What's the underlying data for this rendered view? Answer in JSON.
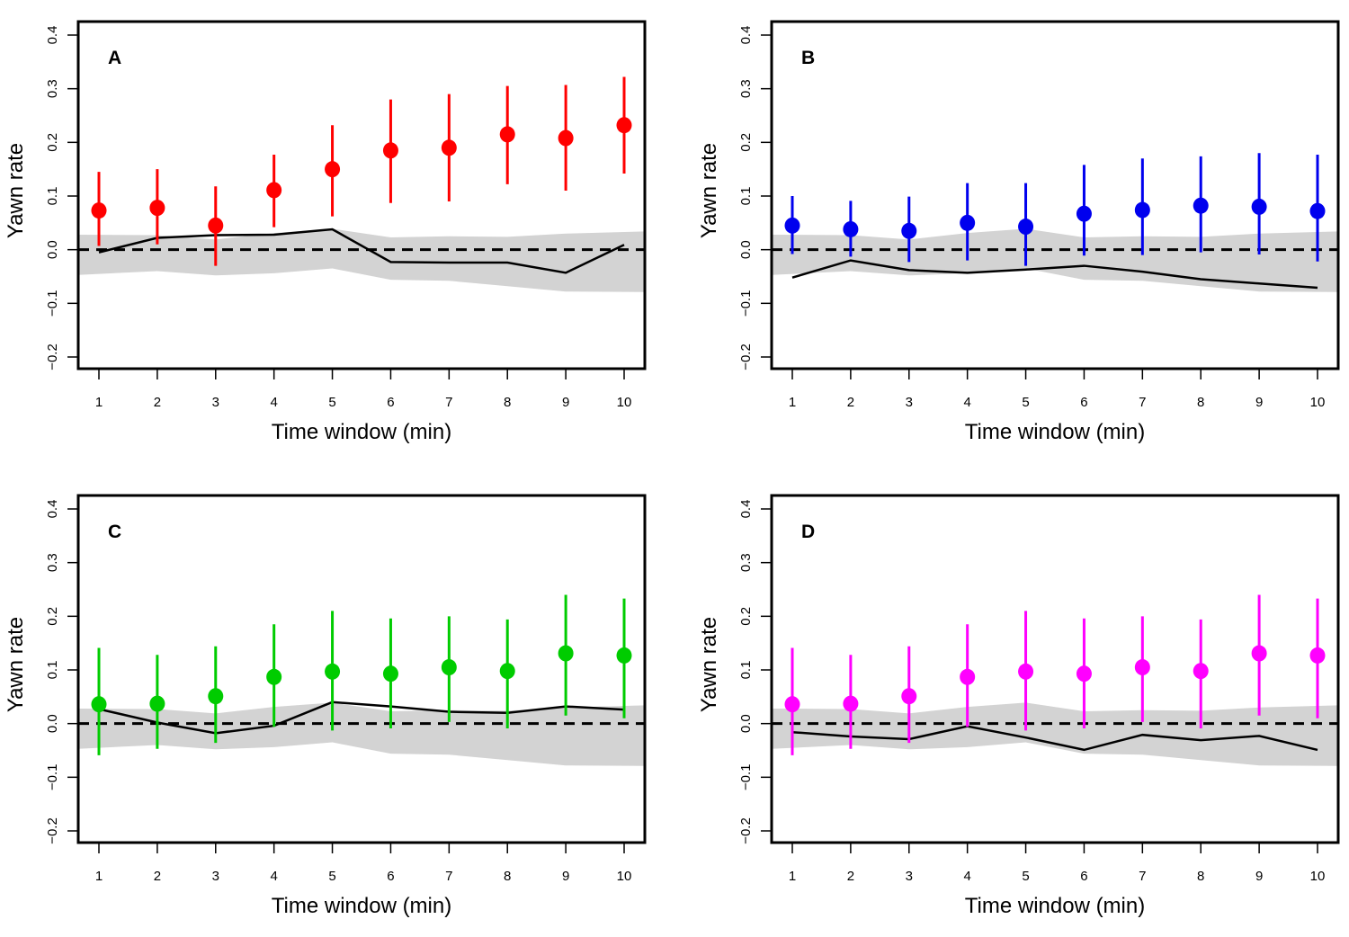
{
  "chart_data": [
    {
      "type": "scatter",
      "panel_label": "A",
      "color": "#ff0000",
      "xlabel": "Time window (min)",
      "ylabel": "Yawn rate",
      "x": [
        1,
        2,
        3,
        4,
        5,
        6,
        7,
        8,
        9,
        10
      ],
      "xticks": [
        "1",
        "2",
        "3",
        "4",
        "5",
        "6",
        "7",
        "8",
        "9",
        "10"
      ],
      "yticks": [
        "-0.2",
        "-0.1",
        "0.0",
        "0.1",
        "0.2",
        "0.3",
        "0.4"
      ],
      "ylim": [
        -0.22,
        0.42
      ],
      "points": [
        0.073,
        0.078,
        0.045,
        0.111,
        0.15,
        0.185,
        0.19,
        0.215,
        0.208,
        0.232
      ],
      "err_upper": [
        0.145,
        0.15,
        0.118,
        0.177,
        0.232,
        0.28,
        0.29,
        0.305,
        0.307,
        0.322
      ],
      "err_lower": [
        0.007,
        0.01,
        -0.03,
        0.042,
        0.062,
        0.087,
        0.09,
        0.122,
        0.11,
        0.142
      ],
      "null_line": [
        -0.005,
        0.022,
        0.027,
        0.028,
        0.038,
        -0.023,
        -0.024,
        -0.024,
        -0.043,
        0.009
      ],
      "band_upper": [
        0.028,
        0.027,
        0.019,
        0.031,
        0.039,
        0.023,
        0.025,
        0.024,
        0.03,
        0.034
      ],
      "band_lower": [
        -0.047,
        -0.04,
        -0.048,
        -0.044,
        -0.035,
        -0.056,
        -0.058,
        -0.068,
        -0.078,
        -0.079
      ],
      "reference_line": 0
    },
    {
      "type": "scatter",
      "panel_label": "B",
      "color": "#0000ee",
      "xlabel": "Time window (min)",
      "ylabel": "Yawn rate",
      "x": [
        1,
        2,
        3,
        4,
        5,
        6,
        7,
        8,
        9,
        10
      ],
      "xticks": [
        "1",
        "2",
        "3",
        "4",
        "5",
        "6",
        "7",
        "8",
        "9",
        "10"
      ],
      "yticks": [
        "-0.2",
        "-0.1",
        "0.0",
        "0.1",
        "0.2",
        "0.3",
        "0.4"
      ],
      "ylim": [
        -0.22,
        0.42
      ],
      "points": [
        0.045,
        0.038,
        0.035,
        0.05,
        0.043,
        0.067,
        0.074,
        0.082,
        0.08,
        0.072
      ],
      "err_upper": [
        0.1,
        0.091,
        0.099,
        0.124,
        0.124,
        0.158,
        0.17,
        0.174,
        0.18,
        0.177
      ],
      "err_lower": [
        -0.008,
        -0.013,
        -0.023,
        -0.02,
        -0.03,
        -0.011,
        -0.01,
        -0.005,
        -0.009,
        -0.022
      ],
      "null_line": [
        -0.052,
        -0.02,
        -0.038,
        -0.043,
        -0.037,
        -0.03,
        -0.041,
        -0.055,
        -0.063,
        -0.071
      ],
      "band_upper": [
        0.028,
        0.027,
        0.019,
        0.031,
        0.039,
        0.023,
        0.025,
        0.024,
        0.03,
        0.034
      ],
      "band_lower": [
        -0.047,
        -0.04,
        -0.048,
        -0.044,
        -0.035,
        -0.056,
        -0.058,
        -0.068,
        -0.078,
        -0.079
      ],
      "reference_line": 0
    },
    {
      "type": "scatter",
      "panel_label": "C",
      "color": "#00cc00",
      "xlabel": "Time window (min)",
      "ylabel": "Yawn rate",
      "x": [
        1,
        2,
        3,
        4,
        5,
        6,
        7,
        8,
        9,
        10
      ],
      "xticks": [
        "1",
        "2",
        "3",
        "4",
        "5",
        "6",
        "7",
        "8",
        "9",
        "10"
      ],
      "yticks": [
        "-0.2",
        "-0.1",
        "0.0",
        "0.1",
        "0.2",
        "0.3",
        "0.4"
      ],
      "ylim": [
        -0.22,
        0.42
      ],
      "points": [
        0.036,
        0.037,
        0.051,
        0.087,
        0.097,
        0.093,
        0.105,
        0.098,
        0.131,
        0.127
      ],
      "err_upper": [
        0.141,
        0.128,
        0.144,
        0.185,
        0.21,
        0.196,
        0.2,
        0.194,
        0.24,
        0.233
      ],
      "err_lower": [
        -0.059,
        -0.047,
        -0.036,
        -0.006,
        -0.013,
        -0.009,
        0.003,
        -0.009,
        0.015,
        0.01
      ],
      "null_line": [
        0.027,
        0.002,
        -0.018,
        -0.004,
        0.04,
        0.032,
        0.022,
        0.02,
        0.032,
        0.026
      ],
      "band_upper": [
        0.028,
        0.027,
        0.019,
        0.031,
        0.039,
        0.023,
        0.025,
        0.024,
        0.03,
        0.034
      ],
      "band_lower": [
        -0.047,
        -0.04,
        -0.048,
        -0.044,
        -0.035,
        -0.056,
        -0.058,
        -0.068,
        -0.078,
        -0.079
      ],
      "reference_line": 0
    },
    {
      "type": "scatter",
      "panel_label": "D",
      "color": "#ff00ff",
      "xlabel": "Time window (min)",
      "ylabel": "Yawn rate",
      "x": [
        1,
        2,
        3,
        4,
        5,
        6,
        7,
        8,
        9,
        10
      ],
      "xticks": [
        "1",
        "2",
        "3",
        "4",
        "5",
        "6",
        "7",
        "8",
        "9",
        "10"
      ],
      "yticks": [
        "-0.2",
        "-0.1",
        "0.0",
        "0.1",
        "0.2",
        "0.3",
        "0.4"
      ],
      "ylim": [
        -0.22,
        0.42
      ],
      "points": [
        0.036,
        0.037,
        0.051,
        0.087,
        0.097,
        0.093,
        0.105,
        0.098,
        0.131,
        0.127
      ],
      "err_upper": [
        0.141,
        0.128,
        0.144,
        0.185,
        0.21,
        0.196,
        0.2,
        0.194,
        0.24,
        0.233
      ],
      "err_lower": [
        -0.059,
        -0.047,
        -0.036,
        -0.006,
        -0.013,
        -0.009,
        0.003,
        -0.009,
        0.015,
        0.01
      ],
      "null_line": [
        -0.016,
        -0.024,
        -0.029,
        -0.005,
        -0.026,
        -0.049,
        -0.021,
        -0.031,
        -0.023,
        -0.049
      ],
      "band_upper": [
        0.028,
        0.027,
        0.019,
        0.031,
        0.039,
        0.023,
        0.025,
        0.024,
        0.03,
        0.034
      ],
      "band_lower": [
        -0.047,
        -0.04,
        -0.048,
        -0.044,
        -0.035,
        -0.056,
        -0.058,
        -0.068,
        -0.078,
        -0.079
      ],
      "reference_line": 0
    }
  ]
}
